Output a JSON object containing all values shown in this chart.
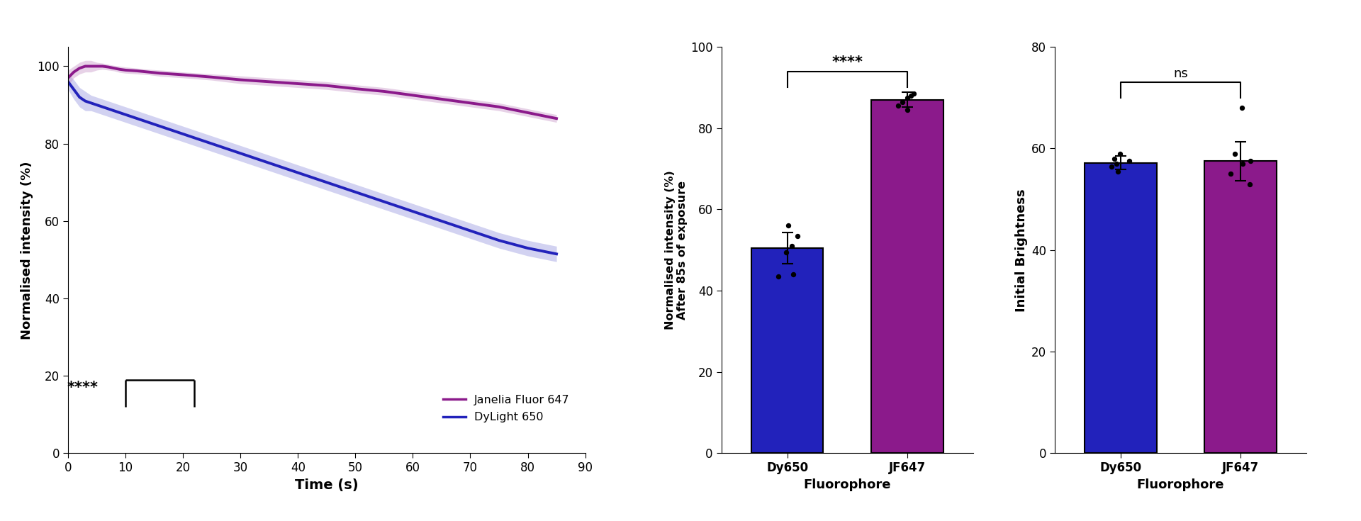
{
  "line_time": [
    0,
    1,
    2,
    3,
    4,
    5,
    6,
    7,
    8,
    9,
    10,
    12,
    14,
    16,
    18,
    20,
    25,
    30,
    35,
    40,
    45,
    50,
    55,
    60,
    65,
    70,
    75,
    80,
    85
  ],
  "jf647_mean": [
    97,
    98.5,
    99.5,
    100,
    100,
    100,
    100,
    99.8,
    99.5,
    99.2,
    99,
    98.8,
    98.5,
    98.2,
    98,
    97.8,
    97.2,
    96.5,
    96,
    95.5,
    95,
    94.2,
    93.5,
    92.5,
    91.5,
    90.5,
    89.5,
    88,
    86.5
  ],
  "jf647_upper": [
    99,
    100,
    101,
    101.5,
    101.5,
    101,
    100.8,
    100.5,
    100.2,
    100,
    99.8,
    99.5,
    99.2,
    99,
    98.8,
    98.5,
    98,
    97.5,
    97,
    96.5,
    96,
    95.2,
    94.5,
    93.5,
    92.5,
    91.5,
    90.5,
    89,
    87.5
  ],
  "jf647_lower": [
    95,
    97,
    98,
    98.5,
    98.5,
    99,
    99.2,
    99,
    98.8,
    98.4,
    98.2,
    98,
    97.8,
    97.4,
    97.2,
    97,
    96.4,
    95.5,
    95,
    94.5,
    94,
    93.2,
    92.5,
    91.5,
    90.5,
    89.5,
    88.5,
    87,
    85.5
  ],
  "dy650_mean": [
    96,
    94,
    92,
    91,
    90.5,
    90,
    89.5,
    89,
    88.5,
    88,
    87.5,
    86.5,
    85.5,
    84.5,
    83.5,
    82.5,
    80,
    77.5,
    75,
    72.5,
    70,
    67.5,
    65,
    62.5,
    60,
    57.5,
    55,
    53,
    51.5
  ],
  "dy650_upper": [
    98,
    96.5,
    94.5,
    93.5,
    92.5,
    92,
    91.5,
    91,
    90.5,
    90,
    89.5,
    88.5,
    87.5,
    86.5,
    85.5,
    84.5,
    82,
    79.5,
    77,
    74.5,
    72,
    69.5,
    67,
    64.5,
    62,
    59.5,
    57,
    55,
    53.5
  ],
  "dy650_lower": [
    94,
    91.5,
    89.5,
    88.5,
    88.5,
    88,
    87.5,
    87,
    86.5,
    86,
    85.5,
    84.5,
    83.5,
    82.5,
    81.5,
    80.5,
    78,
    75.5,
    73,
    70.5,
    68,
    65.5,
    63,
    60.5,
    58,
    55.5,
    53,
    51,
    49.5
  ],
  "jf647_color": "#8B1A8B",
  "dy650_color": "#2222BB",
  "jf647_fill": "#C490C4",
  "dy650_fill": "#9090DD",
  "bar1_categories": [
    "Dy650",
    "JF647"
  ],
  "bar1_values": [
    50.5,
    87.0
  ],
  "bar1_errors": [
    3.8,
    1.8
  ],
  "bar1_colors": [
    "#2222BB",
    "#8B1A8B"
  ],
  "bar1_dots_dy650": [
    43.5,
    44.0,
    49.5,
    51.0,
    53.5,
    56.0
  ],
  "bar1_dots_jf647": [
    84.5,
    85.5,
    86.5,
    87.5,
    88.0,
    88.5
  ],
  "bar2_categories": [
    "Dy650",
    "JF647"
  ],
  "bar2_values": [
    57.2,
    57.5
  ],
  "bar2_errors": [
    1.3,
    3.8
  ],
  "bar2_colors": [
    "#2222BB",
    "#8B1A8B"
  ],
  "bar2_dots_dy650": [
    55.5,
    56.5,
    57.0,
    57.5,
    58.0,
    59.0
  ],
  "bar2_dots_jf647": [
    53.0,
    55.0,
    57.0,
    57.5,
    59.0,
    68.0
  ],
  "line_ylabel": "Normalised intensity (%)",
  "line_xlabel": "Time (s)",
  "bar1_ylabel_line1": "Normalised intensity (%)",
  "bar1_ylabel_line2": "After 85s of exposure",
  "bar1_xlabel": "Fluorophore",
  "bar2_ylabel": "Initial Brightness",
  "bar2_xlabel": "Fluorophore",
  "line_xlim": [
    0,
    90
  ],
  "line_ylim": [
    0,
    105
  ],
  "bar1_ylim": [
    0,
    100
  ],
  "bar2_ylim": [
    0,
    80
  ],
  "line_xticks": [
    0,
    10,
    20,
    30,
    40,
    50,
    60,
    70,
    80,
    90
  ],
  "line_yticks": [
    0,
    20,
    40,
    60,
    80,
    100
  ],
  "bar1_yticks": [
    0,
    20,
    40,
    60,
    80,
    100
  ],
  "bar2_yticks": [
    0,
    20,
    40,
    60,
    80
  ],
  "legend_jf": "Janelia Fluor 647",
  "legend_dy": "DyLight 650"
}
